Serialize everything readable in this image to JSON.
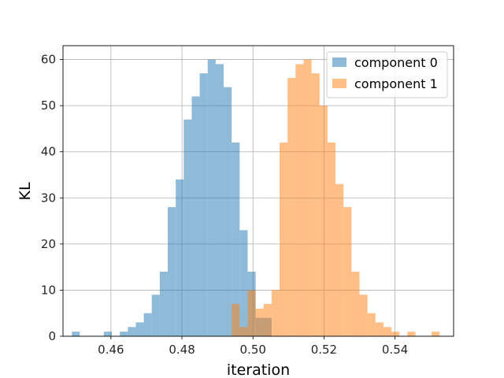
{
  "chart_data": {
    "type": "histogram",
    "xlabel": "iteration",
    "ylabel": "KL",
    "xlim": [
      0.4465,
      0.5565
    ],
    "ylim": [
      0,
      63
    ],
    "x_ticks": [
      0.46,
      0.48,
      0.5,
      0.52,
      0.54
    ],
    "x_tick_labels": [
      "0.46",
      "0.48",
      "0.50",
      "0.52",
      "0.54"
    ],
    "y_ticks": [
      0,
      10,
      20,
      30,
      40,
      50,
      60
    ],
    "y_tick_labels": [
      "0",
      "10",
      "20",
      "30",
      "40",
      "50",
      "60"
    ],
    "grid": true,
    "legend_position": "upper right",
    "bin_width": 0.00225,
    "series": [
      {
        "name": "component 0",
        "color": "#1f77b4",
        "alpha": 0.5,
        "bins": [
          {
            "x0": 0.449,
            "count": 1
          },
          {
            "x0": 0.458,
            "count": 1
          },
          {
            "x0": 0.4625,
            "count": 1
          },
          {
            "x0": 0.46475,
            "count": 2
          },
          {
            "x0": 0.467,
            "count": 3
          },
          {
            "x0": 0.46925,
            "count": 5
          },
          {
            "x0": 0.4715,
            "count": 9
          },
          {
            "x0": 0.47375,
            "count": 14
          },
          {
            "x0": 0.476,
            "count": 28
          },
          {
            "x0": 0.47825,
            "count": 34
          },
          {
            "x0": 0.4805,
            "count": 47
          },
          {
            "x0": 0.48275,
            "count": 52
          },
          {
            "x0": 0.485,
            "count": 57
          },
          {
            "x0": 0.48725,
            "count": 60
          },
          {
            "x0": 0.4895,
            "count": 59
          },
          {
            "x0": 0.49175,
            "count": 54
          },
          {
            "x0": 0.494,
            "count": 42
          },
          {
            "x0": 0.49625,
            "count": 23
          },
          {
            "x0": 0.4985,
            "count": 14
          },
          {
            "x0": 0.50075,
            "count": 4
          },
          {
            "x0": 0.503,
            "count": 4
          }
        ]
      },
      {
        "name": "component 1",
        "color": "#ff7f0e",
        "alpha": 0.5,
        "bins": [
          {
            "x0": 0.494,
            "count": 7
          },
          {
            "x0": 0.49625,
            "count": 2
          },
          {
            "x0": 0.4985,
            "count": 10
          },
          {
            "x0": 0.50075,
            "count": 6
          },
          {
            "x0": 0.503,
            "count": 7
          },
          {
            "x0": 0.50525,
            "count": 10
          },
          {
            "x0": 0.5075,
            "count": 42
          },
          {
            "x0": 0.50975,
            "count": 56
          },
          {
            "x0": 0.512,
            "count": 59
          },
          {
            "x0": 0.51425,
            "count": 60
          },
          {
            "x0": 0.5165,
            "count": 57
          },
          {
            "x0": 0.51875,
            "count": 50
          },
          {
            "x0": 0.521,
            "count": 42
          },
          {
            "x0": 0.52325,
            "count": 33
          },
          {
            "x0": 0.5255,
            "count": 28
          },
          {
            "x0": 0.52775,
            "count": 14
          },
          {
            "x0": 0.53,
            "count": 9
          },
          {
            "x0": 0.53225,
            "count": 5
          },
          {
            "x0": 0.5345,
            "count": 3
          },
          {
            "x0": 0.53675,
            "count": 2
          },
          {
            "x0": 0.539,
            "count": 1
          },
          {
            "x0": 0.5435,
            "count": 1
          },
          {
            "x0": 0.5503,
            "count": 1
          }
        ]
      }
    ]
  }
}
